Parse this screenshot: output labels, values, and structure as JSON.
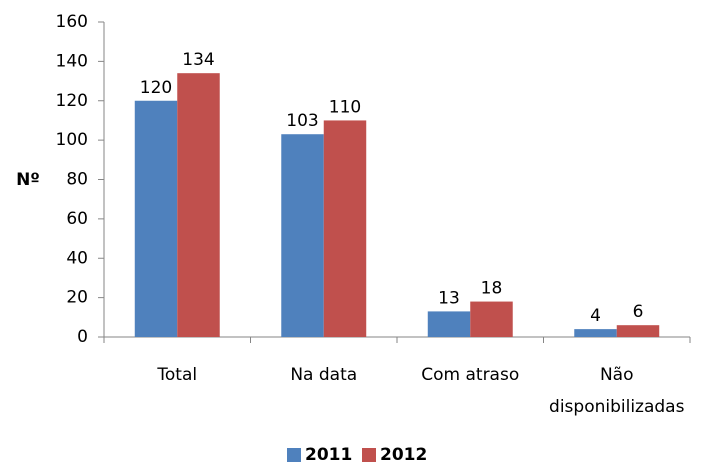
{
  "chart_data": {
    "type": "bar",
    "y_label": "Nº",
    "categories": [
      "Total",
      "Na data",
      "Com atraso",
      "Não disponibilizadas"
    ],
    "series": [
      {
        "name": "2011",
        "color": "#4f81bd",
        "values": [
          120,
          103,
          13,
          4
        ]
      },
      {
        "name": "2012",
        "color": "#c0504d",
        "values": [
          134,
          110,
          18,
          6
        ]
      }
    ],
    "ylim": [
      0,
      160
    ],
    "yticks": [
      0,
      20,
      40,
      60,
      80,
      100,
      120,
      140,
      160
    ],
    "legend": "bottom"
  }
}
